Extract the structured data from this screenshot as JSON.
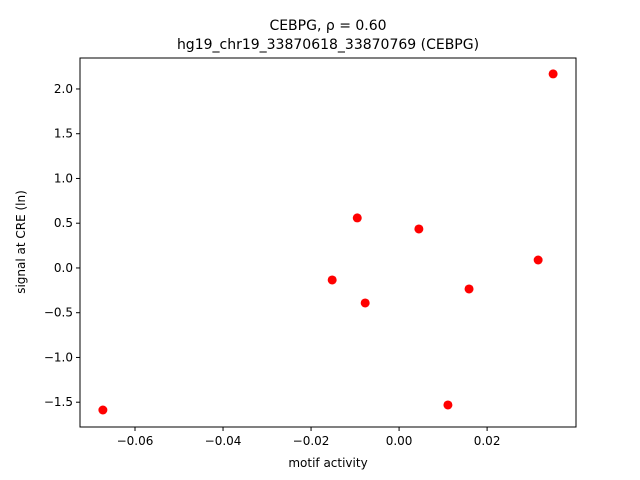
{
  "chart_data": {
    "type": "scatter",
    "title": "CEBPG, ρ = 0.60",
    "subtitle": "hg19_chr19_33870618_33870769 (CEBPG)",
    "xlabel": "motif activity",
    "ylabel": "signal at CRE (ln)",
    "color": "#ff0000",
    "x": [
      -0.0673,
      -0.0152,
      -0.0095,
      -0.0077,
      0.0045,
      0.0111,
      0.0159,
      0.0316,
      0.035
    ],
    "values": [
      -1.587,
      -0.134,
      0.559,
      -0.391,
      0.436,
      -1.531,
      -0.235,
      0.089,
      2.168
    ],
    "xlim": [
      -0.0725,
      0.0402
    ],
    "ylim": [
      -1.777,
      2.346
    ],
    "xticks": [
      {
        "value": -0.06,
        "label": "−0.06"
      },
      {
        "value": -0.04,
        "label": "−0.04"
      },
      {
        "value": -0.02,
        "label": "−0.02"
      },
      {
        "value": 0,
        "label": "0.00"
      },
      0.02
    ],
    "yticks": [
      {
        "value": -1.5,
        "label": "−1.5"
      },
      {
        "value": -1,
        "label": "−1.0"
      },
      {
        "value": -0.5,
        "label": "−0.5"
      },
      {
        "value": 0,
        "label": "0.0"
      },
      0.5,
      {
        "value": 1,
        "label": "1.0"
      },
      1.5,
      {
        "value": 2,
        "label": "2.0"
      }
    ],
    "grid": false
  }
}
